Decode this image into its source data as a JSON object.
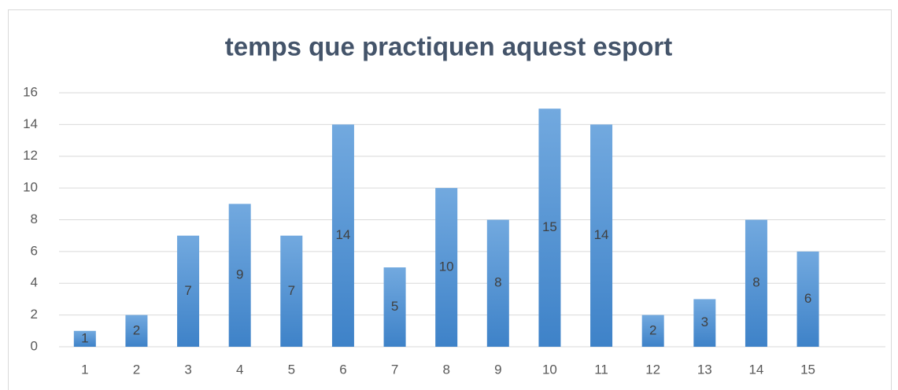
{
  "chart_data": {
    "type": "bar",
    "title": "temps que practiquen aquest esport",
    "categories": [
      "1",
      "2",
      "3",
      "4",
      "5",
      "6",
      "7",
      "8",
      "9",
      "10",
      "11",
      "12",
      "13",
      "14",
      "15",
      null
    ],
    "values": [
      1,
      2,
      7,
      9,
      7,
      14,
      5,
      10,
      8,
      15,
      14,
      2,
      3,
      8,
      6,
      null
    ],
    "color": "#5b9bd5",
    "ylim": [
      0,
      16
    ],
    "yticks": [
      0,
      2,
      4,
      6,
      8,
      10,
      12,
      14,
      16
    ],
    "grid": true,
    "data_labels": true
  }
}
